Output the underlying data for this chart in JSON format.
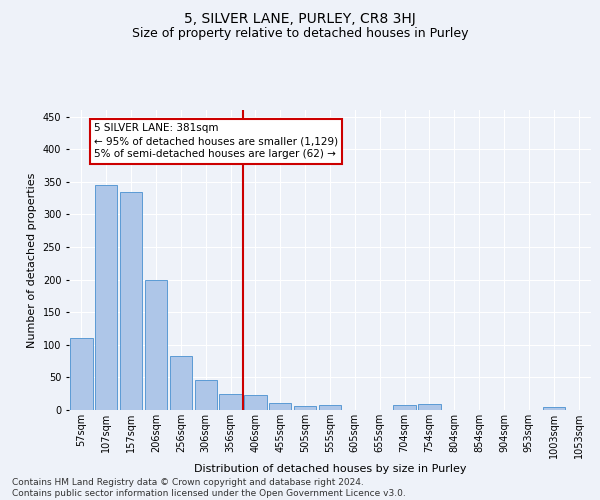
{
  "title": "5, SILVER LANE, PURLEY, CR8 3HJ",
  "subtitle": "Size of property relative to detached houses in Purley",
  "xlabel": "Distribution of detached houses by size in Purley",
  "ylabel": "Number of detached properties",
  "categories": [
    "57sqm",
    "107sqm",
    "157sqm",
    "206sqm",
    "256sqm",
    "306sqm",
    "356sqm",
    "406sqm",
    "455sqm",
    "505sqm",
    "555sqm",
    "605sqm",
    "655sqm",
    "704sqm",
    "754sqm",
    "804sqm",
    "854sqm",
    "904sqm",
    "953sqm",
    "1003sqm",
    "1053sqm"
  ],
  "values": [
    110,
    345,
    335,
    200,
    83,
    46,
    25,
    23,
    11,
    6,
    8,
    0,
    0,
    8,
    9,
    0,
    0,
    0,
    0,
    5,
    0
  ],
  "bar_color": "#aec6e8",
  "bar_edge_color": "#5b9bd5",
  "vline_pos": 6.5,
  "vline_color": "#cc0000",
  "annotation_box_text": "5 SILVER LANE: 381sqm\n← 95% of detached houses are smaller (1,129)\n5% of semi-detached houses are larger (62) →",
  "annotation_box_facecolor": "#ffffff",
  "annotation_box_edgecolor": "#cc0000",
  "footer_text": "Contains HM Land Registry data © Crown copyright and database right 2024.\nContains public sector information licensed under the Open Government Licence v3.0.",
  "ylim": [
    0,
    460
  ],
  "background_color": "#eef2f9",
  "grid_color": "#ffffff",
  "title_fontsize": 10,
  "subtitle_fontsize": 9,
  "axis_label_fontsize": 8,
  "tick_fontsize": 7,
  "footer_fontsize": 6.5,
  "annotation_fontsize": 7.5
}
